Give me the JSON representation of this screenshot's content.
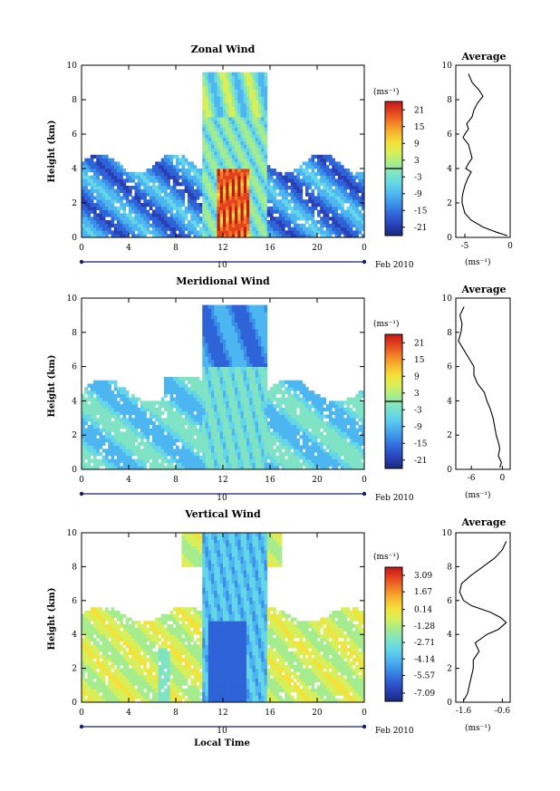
{
  "chart_data": [
    {
      "type": "heatmap",
      "title": "Zonal Wind",
      "ylabel": "Height (km)",
      "xlim": [
        0,
        24
      ],
      "ylim": [
        0,
        10
      ],
      "x_ticks": [
        "0",
        "4",
        "8",
        "12",
        "16",
        "20",
        "0"
      ],
      "y_ticks": [
        "0",
        "2",
        "4",
        "6",
        "8",
        "10"
      ],
      "date_label": "10",
      "date_suffix": "Feb 2010",
      "colorbar": {
        "unit": "(ms⁻¹)",
        "ticks": [
          "21",
          "15",
          "9",
          "3",
          "-3",
          "-9",
          "-15",
          "-21"
        ],
        "range": [
          -24,
          24
        ]
      },
      "average": {
        "title": "Average",
        "xlabel": "(ms⁻¹)",
        "xlim": [
          -6,
          0
        ],
        "x_ticks": [
          "-5",
          "0"
        ],
        "y_ticks": [
          "0",
          "2",
          "4",
          "6",
          "8",
          "10"
        ],
        "profile": {
          "height": [
            0.1,
            0.3,
            0.6,
            1.0,
            1.4,
            1.8,
            2.0,
            2.3,
            2.6,
            3.0,
            3.4,
            3.8,
            4.0,
            4.3,
            4.6,
            5.0,
            5.4,
            5.8,
            6.0,
            6.3,
            6.6,
            7.0,
            7.4,
            7.8,
            8.2,
            8.6,
            9.0,
            9.5
          ],
          "value": [
            -0.3,
            -1.5,
            -3.0,
            -4.3,
            -5.0,
            -5.2,
            -5.3,
            -5.3,
            -5.2,
            -5.0,
            -4.7,
            -4.3,
            -4.9,
            -4.6,
            -4.2,
            -4.4,
            -4.6,
            -5.2,
            -5.0,
            -4.6,
            -4.8,
            -4.2,
            -4.0,
            -3.6,
            -3.0,
            -3.5,
            -4.2,
            -4.6
          ]
        }
      }
    },
    {
      "type": "heatmap",
      "title": "Meridional Wind",
      "ylabel": "Height (km)",
      "xlim": [
        0,
        24
      ],
      "ylim": [
        0,
        10
      ],
      "x_ticks": [
        "0",
        "4",
        "8",
        "12",
        "16",
        "20",
        "0"
      ],
      "y_ticks": [
        "0",
        "2",
        "4",
        "6",
        "8",
        "10"
      ],
      "date_label": "10",
      "date_suffix": "Feb 2010",
      "colorbar": {
        "unit": "(ms⁻¹)",
        "ticks": [
          "21",
          "15",
          "9",
          "3",
          "-3",
          "-9",
          "-15",
          "-21"
        ],
        "range": [
          -24,
          24
        ]
      },
      "average": {
        "title": "Average",
        "xlabel": "(ms⁻¹)",
        "xlim": [
          -9,
          1.5
        ],
        "x_ticks": [
          "-6",
          "0"
        ],
        "y_ticks": [
          "0",
          "2",
          "4",
          "6",
          "8",
          "10"
        ],
        "profile": {
          "height": [
            0.1,
            0.4,
            0.8,
            1.2,
            1.6,
            2.0,
            2.5,
            3.0,
            3.5,
            4.0,
            4.5,
            5.0,
            5.5,
            6.0,
            6.5,
            7.0,
            7.5,
            8.0,
            8.5,
            9.0,
            9.5
          ],
          "value": [
            -0.5,
            -0.2,
            -0.8,
            -0.5,
            -0.8,
            -1.2,
            -1.5,
            -1.8,
            -2.3,
            -3.0,
            -3.5,
            -4.8,
            -5.5,
            -5.5,
            -6.5,
            -7.5,
            -8.5,
            -8.0,
            -7.8,
            -8.2,
            -7.4
          ]
        }
      }
    },
    {
      "type": "heatmap",
      "title": "Vertical Wind",
      "ylabel": "Height (km)",
      "xlabel": "Local Time",
      "xlim": [
        0,
        24
      ],
      "ylim": [
        0,
        10
      ],
      "x_ticks": [
        "0",
        "4",
        "8",
        "12",
        "16",
        "20",
        "0"
      ],
      "y_ticks": [
        "0",
        "2",
        "4",
        "6",
        "8",
        "10"
      ],
      "date_label": "10",
      "date_suffix": "Feb 2010",
      "colorbar": {
        "unit": "(ms⁻¹)",
        "ticks": [
          "3.09",
          "1.67",
          "0.14",
          "-1.28",
          "-2.71",
          "-4.14",
          "-5.57",
          "-7.09"
        ],
        "range": [
          -7.8,
          3.8
        ]
      },
      "average": {
        "title": "Average",
        "xlabel": "(ms⁻¹)",
        "xlim": [
          -1.8,
          -0.4
        ],
        "x_ticks": [
          "-1.6",
          "-0.6"
        ],
        "y_ticks": [
          "0",
          "2",
          "4",
          "6",
          "8",
          "10"
        ],
        "profile": {
          "height": [
            0.1,
            0.5,
            1.0,
            1.5,
            2.0,
            2.5,
            3.0,
            3.5,
            4.0,
            4.3,
            4.7,
            5.0,
            5.3,
            5.7,
            6.0,
            6.5,
            7.0,
            7.5,
            8.0,
            8.5,
            9.0,
            9.5
          ],
          "value": [
            -1.6,
            -1.5,
            -1.45,
            -1.4,
            -1.35,
            -1.35,
            -1.2,
            -1.3,
            -1.0,
            -0.7,
            -0.5,
            -0.65,
            -0.9,
            -1.4,
            -1.6,
            -1.7,
            -1.65,
            -1.4,
            -1.1,
            -0.8,
            -0.6,
            -0.5
          ]
        }
      }
    }
  ]
}
